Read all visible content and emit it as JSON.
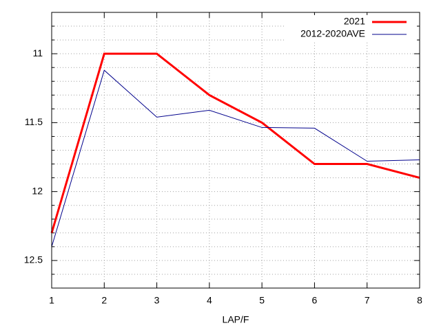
{
  "chart_data": {
    "type": "line",
    "x": [
      1,
      2,
      3,
      4,
      5,
      6,
      7,
      8
    ],
    "xlim": [
      1,
      8
    ],
    "xticks": [
      1,
      2,
      3,
      4,
      5,
      6,
      7,
      8
    ],
    "xlabel": "LAP/F",
    "ylim": [
      12.7,
      10.7
    ],
    "yticks": [
      11,
      11.5,
      12,
      12.5
    ],
    "yminorticks": [
      10.8,
      10.9,
      11.1,
      11.2,
      11.3,
      11.4,
      11.6,
      11.7,
      11.8,
      11.9,
      12.1,
      12.2,
      12.3,
      12.4,
      12.6
    ],
    "y_reversed": true,
    "grid": true,
    "legend": "top-right",
    "series": [
      {
        "name": "2021",
        "color": "#ff0000",
        "width": 3,
        "values": [
          12.3,
          11,
          11,
          11.3,
          11.5,
          11.8,
          11.8,
          11.9
        ]
      },
      {
        "name": "2012-2020AVE",
        "color": "#00008b",
        "width": 1,
        "values": [
          12.4,
          11.12,
          11.46,
          11.41,
          11.535,
          11.54,
          11.78,
          11.77
        ]
      }
    ]
  }
}
